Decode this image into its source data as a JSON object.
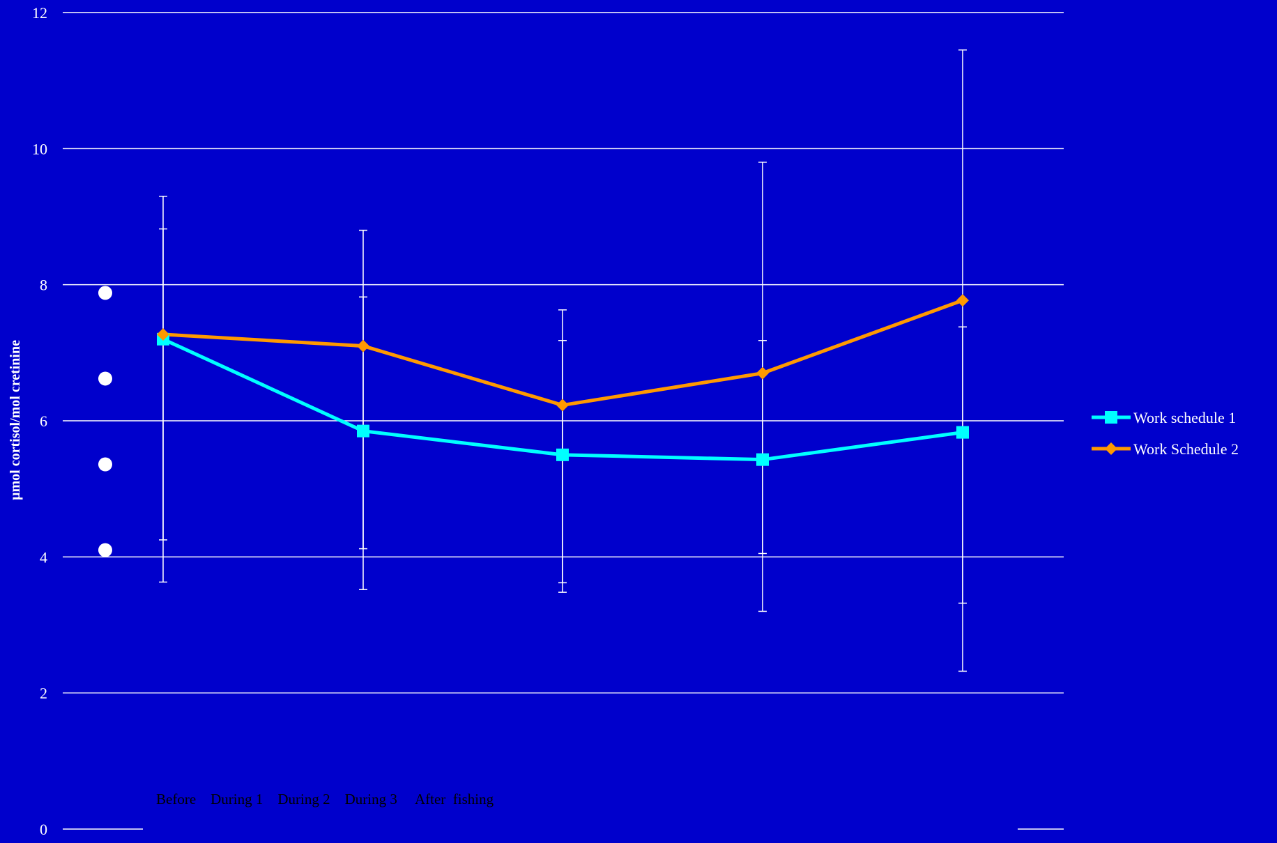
{
  "chart_data": {
    "type": "line",
    "title": "",
    "xlabel": "",
    "ylabel": "µmol cortisol/mol cretinine",
    "ylim": [
      0,
      12
    ],
    "yticks": [
      0,
      2,
      4,
      6,
      8,
      10,
      12
    ],
    "grid": true,
    "legend_position": "right",
    "category_text": "Before    During 1    During 2    During 3     After  fishing",
    "categories_count": 5,
    "series": [
      {
        "name": "Work schedule 1",
        "color": "#00FFFF",
        "marker": "square",
        "values": [
          7.2,
          5.85,
          5.5,
          5.43,
          5.83
        ],
        "error_low": [
          4.25,
          4.12,
          3.62,
          4.05,
          3.32
        ],
        "error_high": [
          8.82,
          7.82,
          7.18,
          7.18,
          7.38
        ]
      },
      {
        "name": "Work Schedule 2",
        "color": "#FF9900",
        "marker": "diamond",
        "values": [
          7.27,
          7.1,
          6.23,
          6.7,
          7.77
        ],
        "error_low": [
          3.63,
          3.52,
          3.48,
          3.2,
          2.32
        ],
        "error_high": [
          9.3,
          8.8,
          7.63,
          9.8,
          11.45
        ]
      }
    ],
    "annotations": [
      {
        "kind": "dot",
        "color": "#FFFFFF",
        "y": 7.88
      },
      {
        "kind": "dot",
        "color": "#FFFFFF",
        "y": 6.62
      },
      {
        "kind": "dot",
        "color": "#FFFFFF",
        "y": 5.36
      },
      {
        "kind": "dot",
        "color": "#FFFFFF",
        "y": 4.1
      }
    ]
  }
}
